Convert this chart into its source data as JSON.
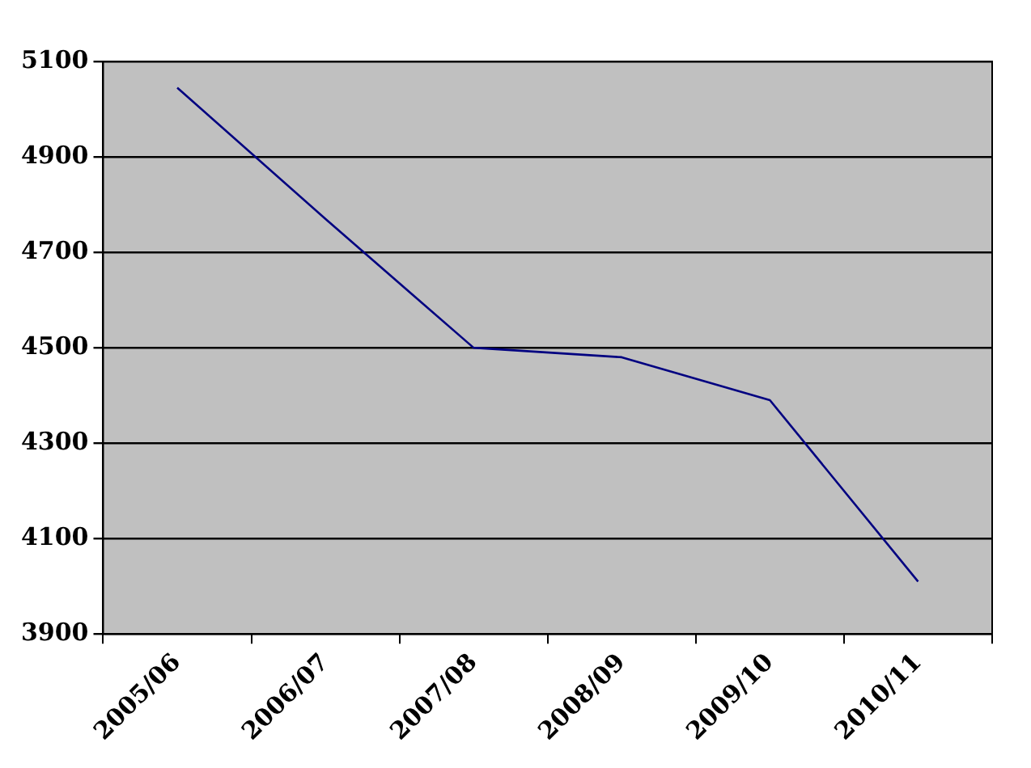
{
  "chart_data": {
    "type": "line",
    "categories": [
      "2005/06",
      "2006/07",
      "2007/08",
      "2008/09",
      "2009/10",
      "2010/11"
    ],
    "series": [
      {
        "color": "#000080",
        "values": [
          5045,
          4770,
          4500,
          4480,
          4390,
          4010
        ]
      }
    ],
    "ylim": [
      3900,
      5100
    ],
    "yticks": [
      3900,
      4100,
      4300,
      4500,
      4700,
      4900,
      5100
    ],
    "grid": "y",
    "legend": false,
    "marker": "none",
    "line_style": "solid"
  }
}
